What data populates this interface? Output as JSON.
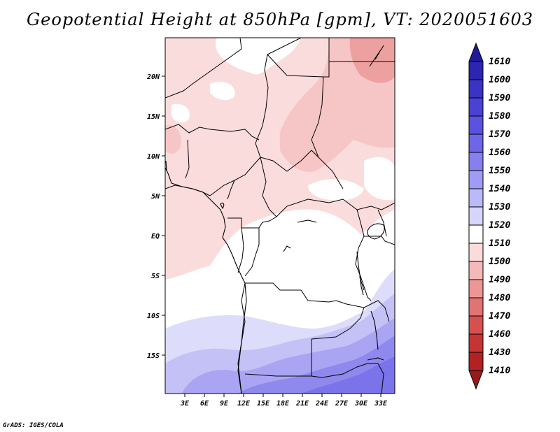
{
  "title": "Geopotential Height at 850hPa [gpm], VT: 2020051603",
  "credit": "GrADS: IGES/COLA",
  "lat_labels": [
    "20N",
    "15N",
    "10N",
    "5N",
    "EQ",
    "5S",
    "10S",
    "15S"
  ],
  "lon_labels": [
    "3E",
    "6E",
    "9E",
    "12E",
    "15E",
    "18E",
    "21E",
    "24E",
    "27E",
    "30E",
    "33E"
  ],
  "colorbar": {
    "labels": [
      "1610",
      "1600",
      "1590",
      "1580",
      "1570",
      "1560",
      "1550",
      "1540",
      "1530",
      "1520",
      "1510",
      "1500",
      "1490",
      "1480",
      "1470",
      "1460",
      "1430",
      "1410"
    ],
    "colors_top_to_bottom": [
      "#1f1a9c",
      "#2b25b0",
      "#3a33c4",
      "#4a42d4",
      "#5a52e0",
      "#6d66e8",
      "#857ff0",
      "#a09cf5",
      "#bcb9f8",
      "#d6d5fb",
      "#ffffff",
      "#fadcdc",
      "#f4b9b9",
      "#ec9696",
      "#e27373",
      "#d65050",
      "#c53535",
      "#b22222",
      "#9a1a1a"
    ]
  },
  "map": {
    "lon_range": [
      0,
      35
    ],
    "lat_range": [
      -20,
      25
    ],
    "fields_colors": {
      "pink_light": "#fadcdc",
      "pink_mid": "#f6c6c6",
      "pink_dark": "#eda0a0",
      "white": "#ffffff",
      "lav1": "#dddcfb",
      "lav2": "#c4c1f7",
      "lav3": "#aaa5f3",
      "lav4": "#8f89ee",
      "lav5": "#7a73ea"
    }
  }
}
